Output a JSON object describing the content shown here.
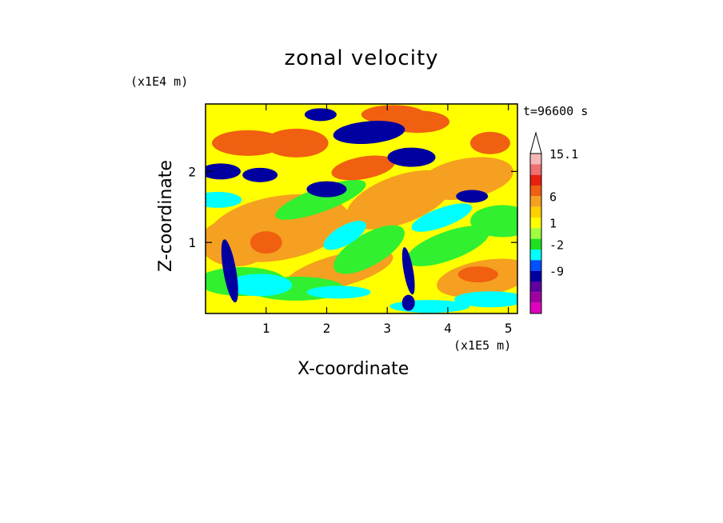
{
  "chart_data": {
    "type": "heatmap",
    "title": "zonal velocity",
    "xlabel": "X-coordinate",
    "ylabel": "Z-coordinate",
    "x_unit": "(x1E5 m)",
    "y_unit": "(x1E4 m)",
    "time_label": "t=96600 s",
    "xlim": [
      0,
      5.15
    ],
    "ylim": [
      0,
      2.95
    ],
    "x_ticks": [
      1,
      2,
      3,
      4,
      5
    ],
    "y_ticks": [
      1,
      2
    ],
    "colorbar": {
      "labels": [
        "15.1",
        "6",
        "1",
        "-2",
        "-9"
      ],
      "colors": [
        "#ffffff",
        "#f5b8b8",
        "#f07070",
        "#e82010",
        "#f06010",
        "#f5a020",
        "#ffd000",
        "#ffff00",
        "#a0ff40",
        "#20e020",
        "#00ffff",
        "#0050ff",
        "#0000a0",
        "#6000a0",
        "#a000a0",
        "#e000c0"
      ]
    },
    "field_colors": {
      "strong_positive": "#f06010",
      "positive": "#f5a020",
      "weak_positive": "#ffd000",
      "near_zero": "#ffff00",
      "weak_negative": "#30f030",
      "negative": "#00ffff",
      "strong_negative": "#0000a0"
    }
  }
}
